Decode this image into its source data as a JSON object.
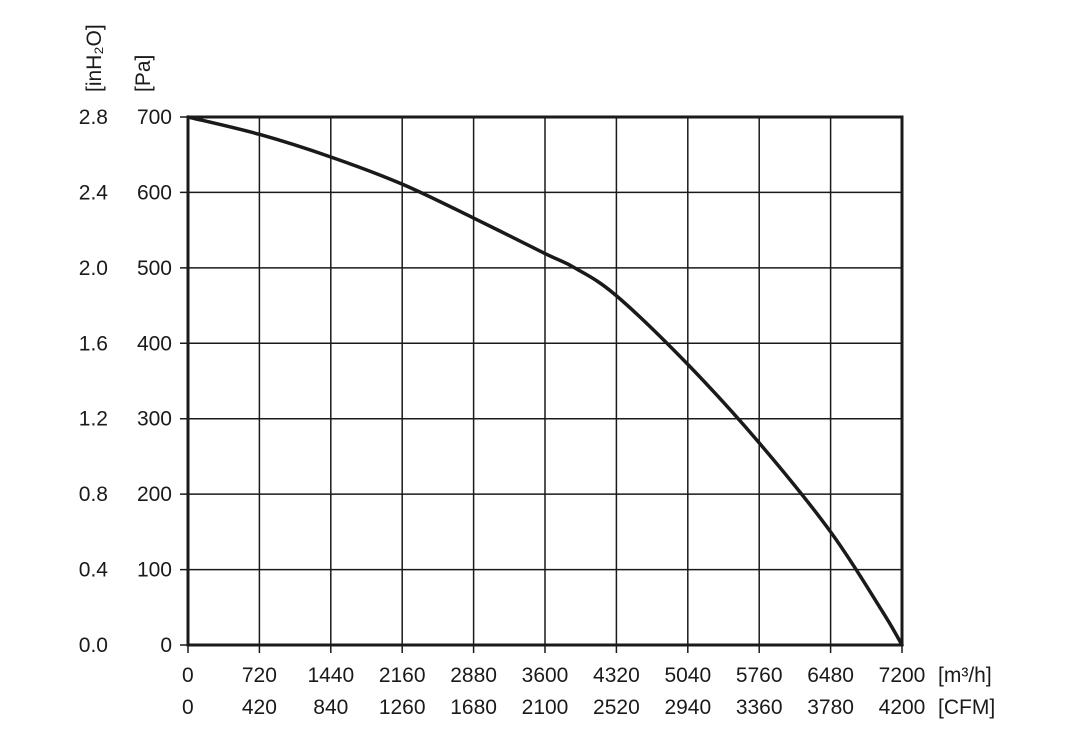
{
  "chart_data": {
    "type": "line",
    "title": "",
    "grid": true,
    "x_primary": {
      "unit_label": "[m³/h]",
      "ticks": [
        "0",
        "720",
        "1440",
        "2160",
        "2880",
        "3600",
        "4320",
        "5040",
        "5760",
        "6480",
        "7200"
      ],
      "range": [
        0,
        7200
      ]
    },
    "x_secondary": {
      "unit_label": "[CFM]",
      "ticks": [
        "0",
        "420",
        "840",
        "1260",
        "1680",
        "2100",
        "2520",
        "2940",
        "3360",
        "3780",
        "4200"
      ]
    },
    "y_primary": {
      "unit_label": "[Pa]",
      "ticks": [
        "0",
        "100",
        "200",
        "300",
        "400",
        "500",
        "600",
        "700"
      ],
      "range": [
        0,
        700
      ]
    },
    "y_secondary": {
      "unit_label": "[inH₂O]",
      "ticks": [
        "0.0",
        "0.4",
        "0.8",
        "1.2",
        "1.6",
        "2.0",
        "2.4",
        "2.8"
      ]
    },
    "series": [
      {
        "color": "#1a1a1a",
        "points": [
          [
            0,
            700
          ],
          [
            720,
            677
          ],
          [
            1440,
            647
          ],
          [
            2160,
            611
          ],
          [
            2880,
            566
          ],
          [
            3600,
            519
          ],
          [
            3900,
            500
          ],
          [
            4320,
            463
          ],
          [
            5040,
            372
          ],
          [
            5760,
            268
          ],
          [
            6480,
            150
          ],
          [
            7000,
            45
          ],
          [
            7200,
            0
          ]
        ]
      }
    ]
  }
}
